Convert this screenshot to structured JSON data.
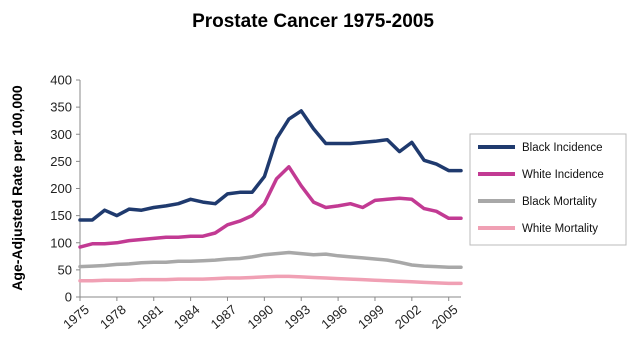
{
  "chart_data": {
    "type": "line",
    "title": "Prostate Cancer 1975-2005",
    "ylabel": "Age-Adjusted Rate per 100,000",
    "xlabel": "",
    "ylim": [
      0,
      400
    ],
    "yticks": [
      "0",
      "50",
      "100",
      "150",
      "200",
      "250",
      "300",
      "350",
      "400"
    ],
    "xlim": [
      1975,
      2006
    ],
    "xticks": [
      "1975",
      "1978",
      "1981",
      "1984",
      "1987",
      "1990",
      "1993",
      "1996",
      "1999",
      "2002",
      "2005"
    ],
    "grid": false,
    "legend_position": "right",
    "x": [
      1975,
      1976,
      1977,
      1978,
      1979,
      1980,
      1981,
      1982,
      1983,
      1984,
      1985,
      1986,
      1987,
      1988,
      1989,
      1990,
      1991,
      1992,
      1993,
      1994,
      1995,
      1996,
      1997,
      1998,
      1999,
      2000,
      2001,
      2002,
      2003,
      2004,
      2005,
      2006
    ],
    "series": [
      {
        "name": "Black Incidence",
        "color": "#1f3a6e",
        "values": [
          142,
          142,
          160,
          150,
          162,
          160,
          165,
          168,
          172,
          180,
          175,
          172,
          190,
          193,
          193,
          222,
          292,
          328,
          343,
          310,
          283,
          283,
          283,
          285,
          287,
          290,
          268,
          285,
          252,
          245,
          233,
          233
        ]
      },
      {
        "name": "White Incidence",
        "color": "#c23a93",
        "values": [
          92,
          98,
          98,
          100,
          104,
          106,
          108,
          110,
          110,
          112,
          112,
          118,
          133,
          140,
          150,
          172,
          218,
          240,
          205,
          175,
          165,
          168,
          172,
          165,
          178,
          180,
          182,
          180,
          163,
          158,
          145,
          145
        ]
      },
      {
        "name": "Black Mortality",
        "color": "#a8a8a8",
        "values": [
          56,
          57,
          58,
          60,
          61,
          63,
          64,
          64,
          66,
          66,
          67,
          68,
          70,
          71,
          74,
          78,
          80,
          82,
          80,
          78,
          79,
          76,
          74,
          72,
          70,
          68,
          64,
          59,
          57,
          56,
          55,
          55
        ]
      },
      {
        "name": "White Mortality",
        "color": "#f0a0b4",
        "values": [
          30,
          30,
          31,
          31,
          31,
          32,
          32,
          32,
          33,
          33,
          33,
          34,
          35,
          35,
          36,
          37,
          38,
          38,
          37,
          36,
          35,
          34,
          33,
          32,
          31,
          30,
          29,
          28,
          27,
          26,
          25,
          25
        ]
      }
    ]
  }
}
